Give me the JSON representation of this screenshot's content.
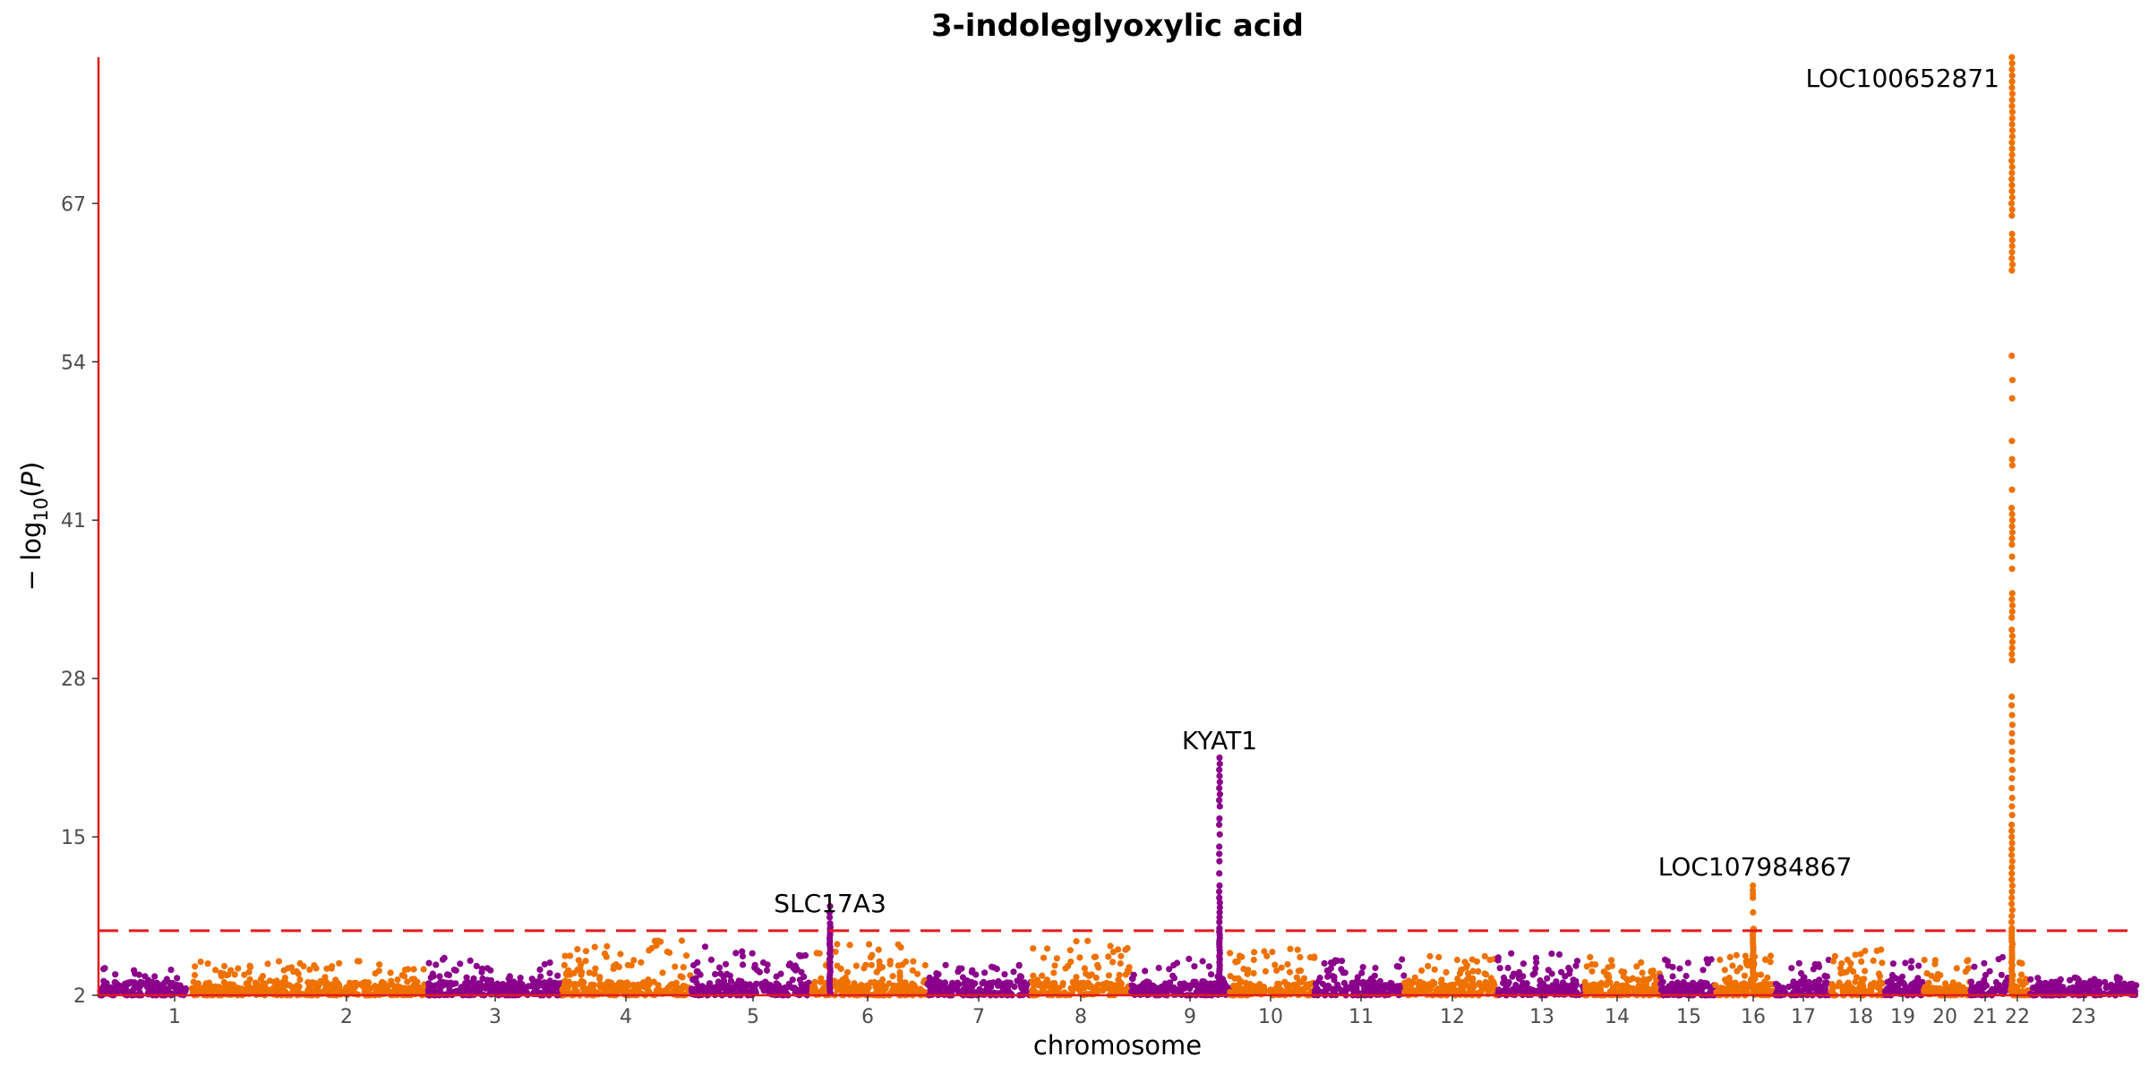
{
  "chart_data": {
    "type": "scatter",
    "subtype": "manhattan",
    "title": "3-indoleglyoxylic acid",
    "xlabel": "chromosome",
    "ylabel": "− log10(P)",
    "ylim": [
      2,
      79
    ],
    "yticks": [
      2,
      15,
      28,
      41,
      54,
      67
    ],
    "grid": false,
    "legend": "none",
    "threshold": 7.3,
    "colors": {
      "odd": "#8b008b",
      "even": "#ef7100",
      "axis": "#e41a1c",
      "threshold": "#e41a1c"
    },
    "chromosomes": [
      {
        "label": "1",
        "background_max": 4.5
      },
      {
        "label": "2",
        "background_max": 4.8
      },
      {
        "label": "3",
        "background_max": 5.1
      },
      {
        "label": "4",
        "background_max": 6.5
      },
      {
        "label": "5",
        "background_max": 6.0
      },
      {
        "label": "6",
        "background_max": 6.2
      },
      {
        "label": "7",
        "background_max": 4.5
      },
      {
        "label": "8",
        "background_max": 6.5
      },
      {
        "label": "9",
        "background_max": 5.0
      },
      {
        "label": "10",
        "background_max": 6.2
      },
      {
        "label": "11",
        "background_max": 5.0
      },
      {
        "label": "12",
        "background_max": 5.2
      },
      {
        "label": "13",
        "background_max": 5.5
      },
      {
        "label": "14",
        "background_max": 5.2
      },
      {
        "label": "15",
        "background_max": 5.2
      },
      {
        "label": "16",
        "background_max": 5.5
      },
      {
        "label": "17",
        "background_max": 5.0
      },
      {
        "label": "18",
        "background_max": 5.8
      },
      {
        "label": "19",
        "background_max": 5.0
      },
      {
        "label": "20",
        "background_max": 5.2
      },
      {
        "label": "21",
        "background_max": 5.2
      },
      {
        "label": "22",
        "background_max": 4.8
      },
      {
        "label": "23",
        "background_max": 3.5
      }
    ],
    "peaks": [
      {
        "chromosome": "5",
        "gene": "SLC17A3",
        "top": 9.3,
        "values": [
          7.6,
          7.9,
          8.4,
          8.8,
          9.3
        ]
      },
      {
        "chromosome": "9",
        "gene": "KYAT1",
        "top": 21.5,
        "values": [
          7.5,
          8.0,
          8.4,
          8.8,
          9.2,
          9.6,
          10.0,
          10.5,
          11.0,
          12.0,
          13.0,
          13.6,
          14.2,
          15.2,
          16.0,
          16.5,
          17.5,
          18.0,
          18.5,
          19.0,
          19.5,
          20.0,
          20.5,
          21.0,
          21.5
        ]
      },
      {
        "chromosome": "16",
        "gene": "LOC107984867",
        "top": 11.0,
        "values": [
          8.8,
          10.0,
          10.3,
          10.6,
          11.0
        ]
      },
      {
        "chromosome": "22",
        "gene": "LOC100652871",
        "top": 79.0,
        "values": [
          7.5,
          8.0,
          8.5,
          9.0,
          9.5,
          10.0,
          10.5,
          11.0,
          11.5,
          12.0,
          12.5,
          13.0,
          13.5,
          14.0,
          14.5,
          15.0,
          15.5,
          16.0,
          16.8,
          17.5,
          18.2,
          19.0,
          19.8,
          20.5,
          21.3,
          22.0,
          22.8,
          23.5,
          24.2,
          25.0,
          25.8,
          26.5,
          29.5,
          30.0,
          30.5,
          31.0,
          31.5,
          32.0,
          33.0,
          33.5,
          34.0,
          34.5,
          35.0,
          37.0,
          38.0,
          39.0,
          39.5,
          40.0,
          40.5,
          41.0,
          41.5,
          42.0,
          43.5,
          45.5,
          46.0,
          47.5,
          51.0,
          52.5,
          54.5,
          61.5,
          62.0,
          62.5,
          63.0,
          63.5,
          64.0,
          64.5,
          66.0,
          66.5,
          67.0,
          67.5,
          68.0,
          68.5,
          69.0,
          69.5,
          70.0,
          70.5,
          71.0,
          71.5,
          72.0,
          72.5,
          73.0,
          73.5,
          74.0,
          74.5,
          75.0,
          75.5,
          76.0,
          76.5,
          77.0,
          77.5,
          78.0,
          78.5,
          79.0
        ]
      }
    ],
    "annotations": [
      {
        "text": "SLC17A3",
        "chromosome": "5",
        "y": 9.3
      },
      {
        "text": "KYAT1",
        "chromosome": "9",
        "y": 21.5
      },
      {
        "text": "LOC107984867",
        "chromosome": "16",
        "y": 11.0
      },
      {
        "text": "LOC100652871",
        "chromosome": "22",
        "y": 79.0
      }
    ]
  }
}
